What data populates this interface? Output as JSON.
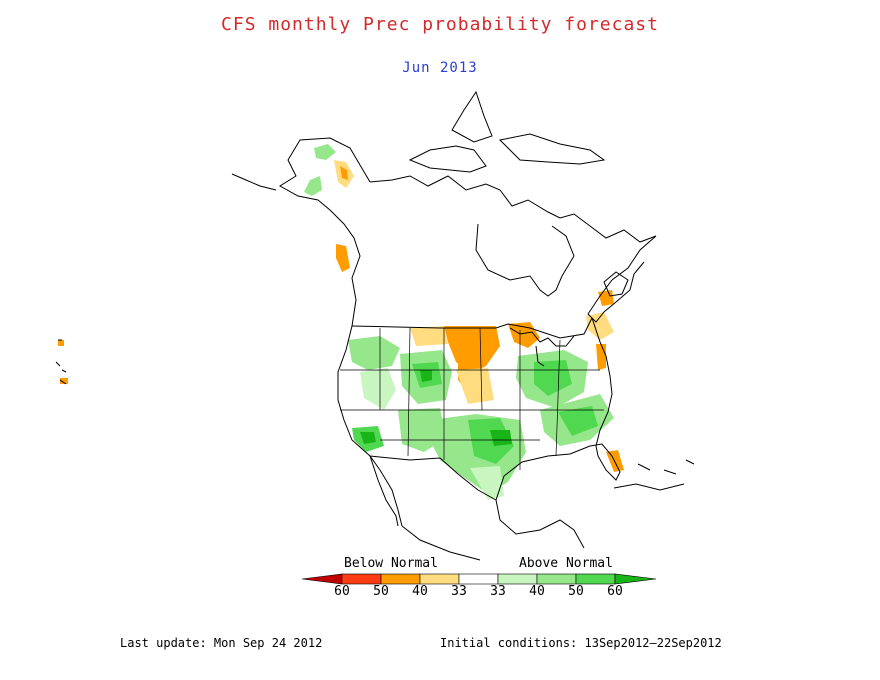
{
  "header": {
    "title": "CFS monthly Prec probability forecast",
    "subtitle": "Jun 2013"
  },
  "colors": {
    "title": "#d42a2a",
    "subtitle": "#2a3ed4",
    "coast": "#000000",
    "below_60": "#c00000",
    "below_50": "#ff3c14",
    "below_40": "#ff9c00",
    "below_33": "#ffdc80",
    "normal": "#ffffff",
    "above_33": "#c8f5c0",
    "above_40": "#96e68c",
    "above_50": "#50d850",
    "above_60": "#18b418"
  },
  "legend": {
    "below_label": "Below Normal",
    "above_label": "Above Normal",
    "ticks": [
      "60",
      "50",
      "40",
      "33",
      "33",
      "40",
      "50",
      "60"
    ]
  },
  "footer": {
    "last_update": "Last update: Mon Sep 24 2012",
    "initial_conditions": "Initial conditions: 13Sep2012–22Sep2012"
  }
}
